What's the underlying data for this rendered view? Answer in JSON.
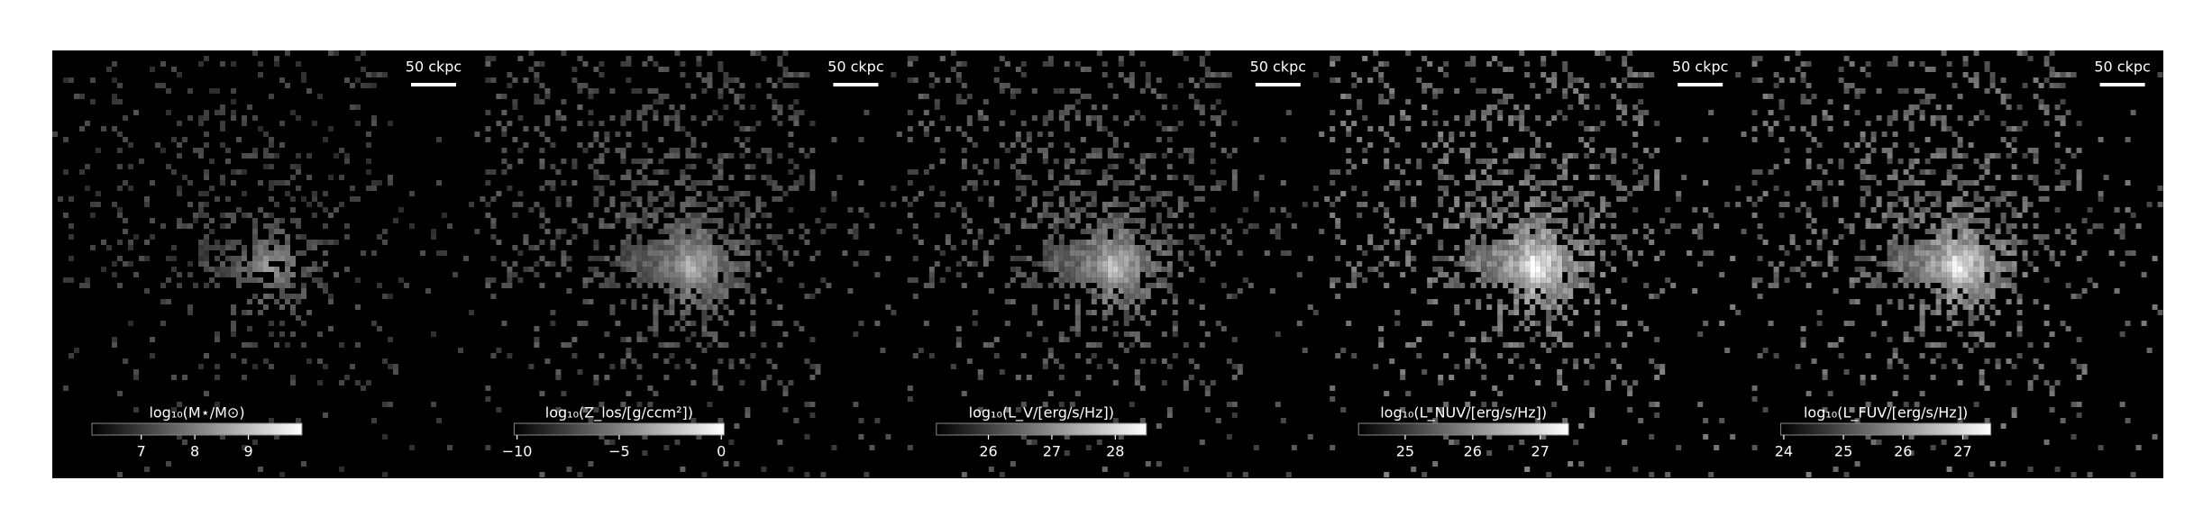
{
  "panels": [
    {
      "scale_label": "50 ckpc",
      "colorbar": {
        "label": "log₁₀(M⋆/M⊙)",
        "xlim": [
          6.08,
          10.0
        ],
        "xticks": [
          7,
          8,
          9
        ]
      }
    },
    {
      "scale_label": "50 ckpc",
      "colorbar": {
        "label": "log₁₀(Z_los/[g/ccm²])",
        "xlim": [
          -10.14,
          0.14
        ],
        "xticks": [
          {
            "value": -10,
            "label": "−10"
          },
          {
            "value": -5,
            "label": "−5"
          },
          0
        ]
      }
    },
    {
      "scale_label": "50 ckpc",
      "colorbar": {
        "label": "log₁₀(L_V/[erg/s/Hz])",
        "xlim": [
          25.18,
          28.49
        ],
        "xticks": [
          26,
          27,
          28
        ]
      }
    },
    {
      "scale_label": "50 ckpc",
      "colorbar": {
        "label": "log₁₀(L_NUV/[erg/s/Hz])",
        "xlim": [
          24.31,
          27.42
        ],
        "xticks": [
          25,
          26,
          27
        ]
      }
    },
    {
      "scale_label": "50 ckpc",
      "colorbar": {
        "label": "log₁₀(L_FUV/[erg/s/Hz])",
        "xlim": [
          23.95,
          27.47
        ],
        "xticks": [
          24,
          25,
          26,
          27
        ]
      }
    }
  ]
}
